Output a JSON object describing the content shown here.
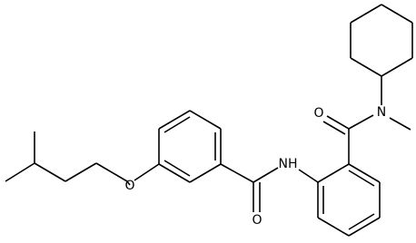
{
  "atoms": [
    {
      "label": "O"
    },
    {
      "label": "O"
    },
    {
      "label": "NH"
    },
    {
      "label": "O"
    },
    {
      "label": "N"
    }
  ]
}
